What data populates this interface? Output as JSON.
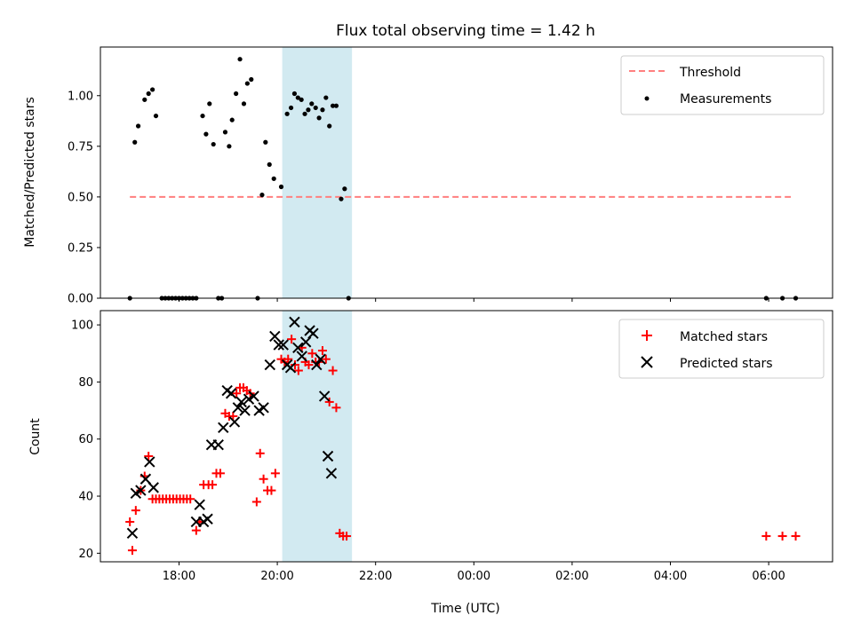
{
  "chart_data": {
    "type": "scatter",
    "title": "Flux total observing time = 1.42 h",
    "xlabel": "Time (UTC)",
    "x_unit": "hours since 00:00 of first day (values past 24 are next day)",
    "xlim": [
      16.4,
      31.3
    ],
    "xticks": [
      {
        "value": 18,
        "label": "18:00"
      },
      {
        "value": 20,
        "label": "20:00"
      },
      {
        "value": 22,
        "label": "22:00"
      },
      {
        "value": 24,
        "label": "00:00"
      },
      {
        "value": 26,
        "label": "02:00"
      },
      {
        "value": 28,
        "label": "04:00"
      },
      {
        "value": 30,
        "label": "06:00"
      }
    ],
    "shaded_region": {
      "x": [
        20.1,
        21.52
      ],
      "color": "#add8e6"
    },
    "top": {
      "ylabel": "Matched/Predicted stars",
      "ylim": [
        0,
        1.24
      ],
      "yticks": [
        "0.00",
        "0.25",
        "0.50",
        "0.75",
        "1.00"
      ],
      "legend_position": "upper right",
      "threshold": {
        "name": "Threshold",
        "y": 0.5,
        "x": [
          17.0,
          30.45
        ],
        "color": "#ff7f7f"
      },
      "measurements": {
        "name": "Measurements",
        "color": "#000000",
        "points": [
          [
            17.0,
            0.0
          ],
          [
            17.1,
            0.77
          ],
          [
            17.17,
            0.85
          ],
          [
            17.3,
            0.98
          ],
          [
            17.38,
            1.01
          ],
          [
            17.46,
            1.03
          ],
          [
            17.53,
            0.9
          ],
          [
            17.65,
            0.0
          ],
          [
            17.72,
            0.0
          ],
          [
            17.79,
            0.0
          ],
          [
            17.86,
            0.0
          ],
          [
            17.93,
            0.0
          ],
          [
            18.0,
            0.0
          ],
          [
            18.07,
            0.0
          ],
          [
            18.14,
            0.0
          ],
          [
            18.21,
            0.0
          ],
          [
            18.28,
            0.0
          ],
          [
            18.35,
            0.0
          ],
          [
            18.48,
            0.9
          ],
          [
            18.55,
            0.81
          ],
          [
            18.62,
            0.96
          ],
          [
            18.7,
            0.76
          ],
          [
            18.8,
            0.0
          ],
          [
            18.87,
            0.0
          ],
          [
            18.94,
            0.82
          ],
          [
            19.02,
            0.75
          ],
          [
            19.08,
            0.88
          ],
          [
            19.16,
            1.01
          ],
          [
            19.24,
            1.18
          ],
          [
            19.32,
            0.96
          ],
          [
            19.39,
            1.06
          ],
          [
            19.47,
            1.08
          ],
          [
            19.6,
            0.0
          ],
          [
            19.69,
            0.51
          ],
          [
            19.76,
            0.77
          ],
          [
            19.84,
            0.66
          ],
          [
            19.93,
            0.59
          ],
          [
            20.08,
            0.55
          ],
          [
            20.2,
            0.91
          ],
          [
            20.28,
            0.94
          ],
          [
            20.35,
            1.01
          ],
          [
            20.42,
            0.99
          ],
          [
            20.49,
            0.98
          ],
          [
            20.56,
            0.91
          ],
          [
            20.63,
            0.93
          ],
          [
            20.7,
            0.96
          ],
          [
            20.78,
            0.94
          ],
          [
            20.85,
            0.89
          ],
          [
            20.92,
            0.93
          ],
          [
            20.99,
            0.99
          ],
          [
            21.06,
            0.85
          ],
          [
            21.13,
            0.95
          ],
          [
            21.2,
            0.95
          ],
          [
            21.3,
            0.49
          ],
          [
            21.37,
            0.54
          ],
          [
            21.45,
            0.0
          ],
          [
            29.95,
            0.0
          ],
          [
            30.28,
            0.0
          ],
          [
            30.55,
            0.0
          ]
        ]
      }
    },
    "bottom": {
      "ylabel": "Count",
      "ylim": [
        17,
        105
      ],
      "yticks": [
        "20",
        "40",
        "60",
        "80",
        "100"
      ],
      "legend_position": "upper right",
      "matched": {
        "name": "Matched stars",
        "color": "#ff0000",
        "points": [
          [
            17.0,
            31
          ],
          [
            17.05,
            21
          ],
          [
            17.12,
            35
          ],
          [
            17.22,
            42
          ],
          [
            17.3,
            47
          ],
          [
            17.38,
            54
          ],
          [
            17.46,
            39
          ],
          [
            17.53,
            39
          ],
          [
            17.6,
            39
          ],
          [
            17.67,
            39
          ],
          [
            17.74,
            39
          ],
          [
            17.81,
            39
          ],
          [
            17.88,
            39
          ],
          [
            17.95,
            39
          ],
          [
            18.02,
            39
          ],
          [
            18.09,
            39
          ],
          [
            18.16,
            39
          ],
          [
            18.23,
            39
          ],
          [
            18.35,
            28
          ],
          [
            18.42,
            31
          ],
          [
            18.5,
            44
          ],
          [
            18.6,
            44
          ],
          [
            18.68,
            44
          ],
          [
            18.76,
            48
          ],
          [
            18.84,
            48
          ],
          [
            18.94,
            69
          ],
          [
            19.02,
            68
          ],
          [
            19.1,
            68
          ],
          [
            19.17,
            76
          ],
          [
            19.24,
            78
          ],
          [
            19.31,
            78
          ],
          [
            19.38,
            77
          ],
          [
            19.45,
            76
          ],
          [
            19.58,
            38
          ],
          [
            19.65,
            55
          ],
          [
            19.72,
            46
          ],
          [
            19.8,
            42
          ],
          [
            19.88,
            42
          ],
          [
            19.96,
            48
          ],
          [
            20.08,
            88
          ],
          [
            20.15,
            87
          ],
          [
            20.22,
            88
          ],
          [
            20.29,
            95
          ],
          [
            20.36,
            86
          ],
          [
            20.43,
            84
          ],
          [
            20.5,
            92
          ],
          [
            20.57,
            87
          ],
          [
            20.64,
            86
          ],
          [
            20.71,
            90
          ],
          [
            20.78,
            87
          ],
          [
            20.85,
            87
          ],
          [
            20.92,
            91
          ],
          [
            20.99,
            88
          ],
          [
            21.06,
            73
          ],
          [
            21.13,
            84
          ],
          [
            21.2,
            71
          ],
          [
            21.27,
            27
          ],
          [
            21.34,
            26
          ],
          [
            21.41,
            26
          ],
          [
            29.95,
            26
          ],
          [
            30.28,
            26
          ],
          [
            30.55,
            26
          ]
        ]
      },
      "predicted": {
        "name": "Predicted stars",
        "color": "#000000",
        "points": [
          [
            17.05,
            27
          ],
          [
            17.12,
            41
          ],
          [
            17.22,
            42
          ],
          [
            17.32,
            46
          ],
          [
            17.4,
            52
          ],
          [
            17.48,
            43
          ],
          [
            18.35,
            31
          ],
          [
            18.42,
            37
          ],
          [
            18.5,
            31
          ],
          [
            18.58,
            32
          ],
          [
            18.66,
            58
          ],
          [
            18.8,
            58
          ],
          [
            18.9,
            64
          ],
          [
            18.98,
            77
          ],
          [
            19.06,
            76
          ],
          [
            19.13,
            66
          ],
          [
            19.2,
            71
          ],
          [
            19.27,
            73
          ],
          [
            19.34,
            70
          ],
          [
            19.42,
            74
          ],
          [
            19.52,
            75
          ],
          [
            19.63,
            70
          ],
          [
            19.72,
            71
          ],
          [
            19.85,
            86
          ],
          [
            19.95,
            96
          ],
          [
            20.03,
            93
          ],
          [
            20.12,
            93
          ],
          [
            20.2,
            86
          ],
          [
            20.27,
            85
          ],
          [
            20.35,
            101
          ],
          [
            20.42,
            92
          ],
          [
            20.5,
            89
          ],
          [
            20.58,
            94
          ],
          [
            20.66,
            98
          ],
          [
            20.73,
            97
          ],
          [
            20.8,
            86
          ],
          [
            20.88,
            88
          ],
          [
            20.96,
            75
          ],
          [
            21.03,
            54
          ],
          [
            21.1,
            48
          ]
        ]
      }
    }
  }
}
